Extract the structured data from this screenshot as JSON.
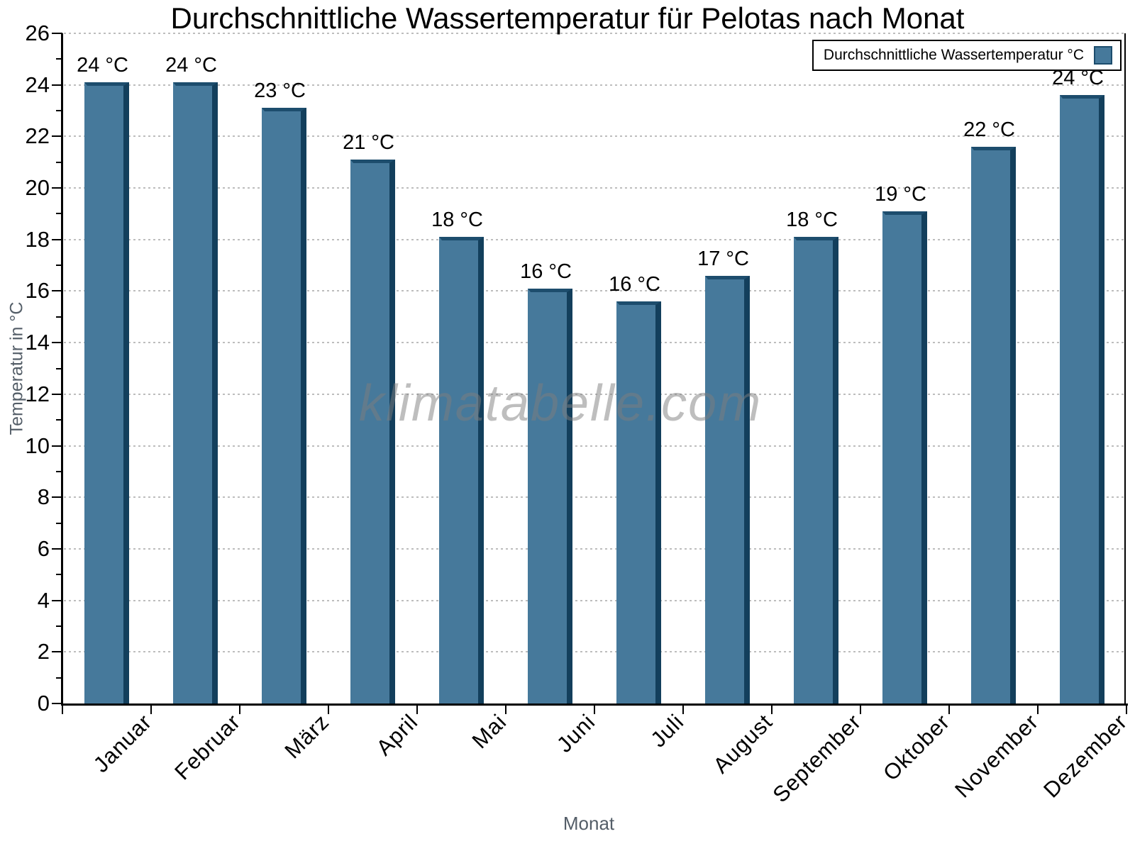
{
  "chart_data": {
    "type": "bar",
    "title": "Durchschnittliche Wassertemperatur für Pelotas nach Monat",
    "xlabel": "Monat",
    "ylabel": "Temperatur in °C",
    "categories": [
      "Januar",
      "Februar",
      "März",
      "April",
      "Mai",
      "Juni",
      "Juli",
      "August",
      "September",
      "Oktober",
      "November",
      "Dezember"
    ],
    "values": [
      24.1,
      24.1,
      23.1,
      21.1,
      18.1,
      16.1,
      15.6,
      16.6,
      18.1,
      19.1,
      21.6,
      23.6
    ],
    "bar_labels": [
      "24 °C",
      "24 °C",
      "23 °C",
      "21 °C",
      "18 °C",
      "16 °C",
      "16 °C",
      "17 °C",
      "18 °C",
      "19 °C",
      "22 °C",
      "24 °C"
    ],
    "ylim": [
      0,
      26
    ],
    "yticks": [
      0,
      2,
      4,
      6,
      8,
      10,
      12,
      14,
      16,
      18,
      20,
      22,
      24,
      26
    ],
    "grid": "horizontal-dotted",
    "legend": {
      "position": "top-right",
      "label": "Durchschnittliche Wassertemperatur °C"
    },
    "watermark": "klimatabelle.com",
    "colors": {
      "bar": "#46799b",
      "bar_top_edge": "#1d4d6d",
      "bar_right_edge": "#133f5c",
      "axis": "#000000",
      "grid": "#bdbdbd",
      "axis_title": "#545e68",
      "tick_label": "#000000",
      "watermark": "rgba(125,125,125,0.5)"
    }
  }
}
